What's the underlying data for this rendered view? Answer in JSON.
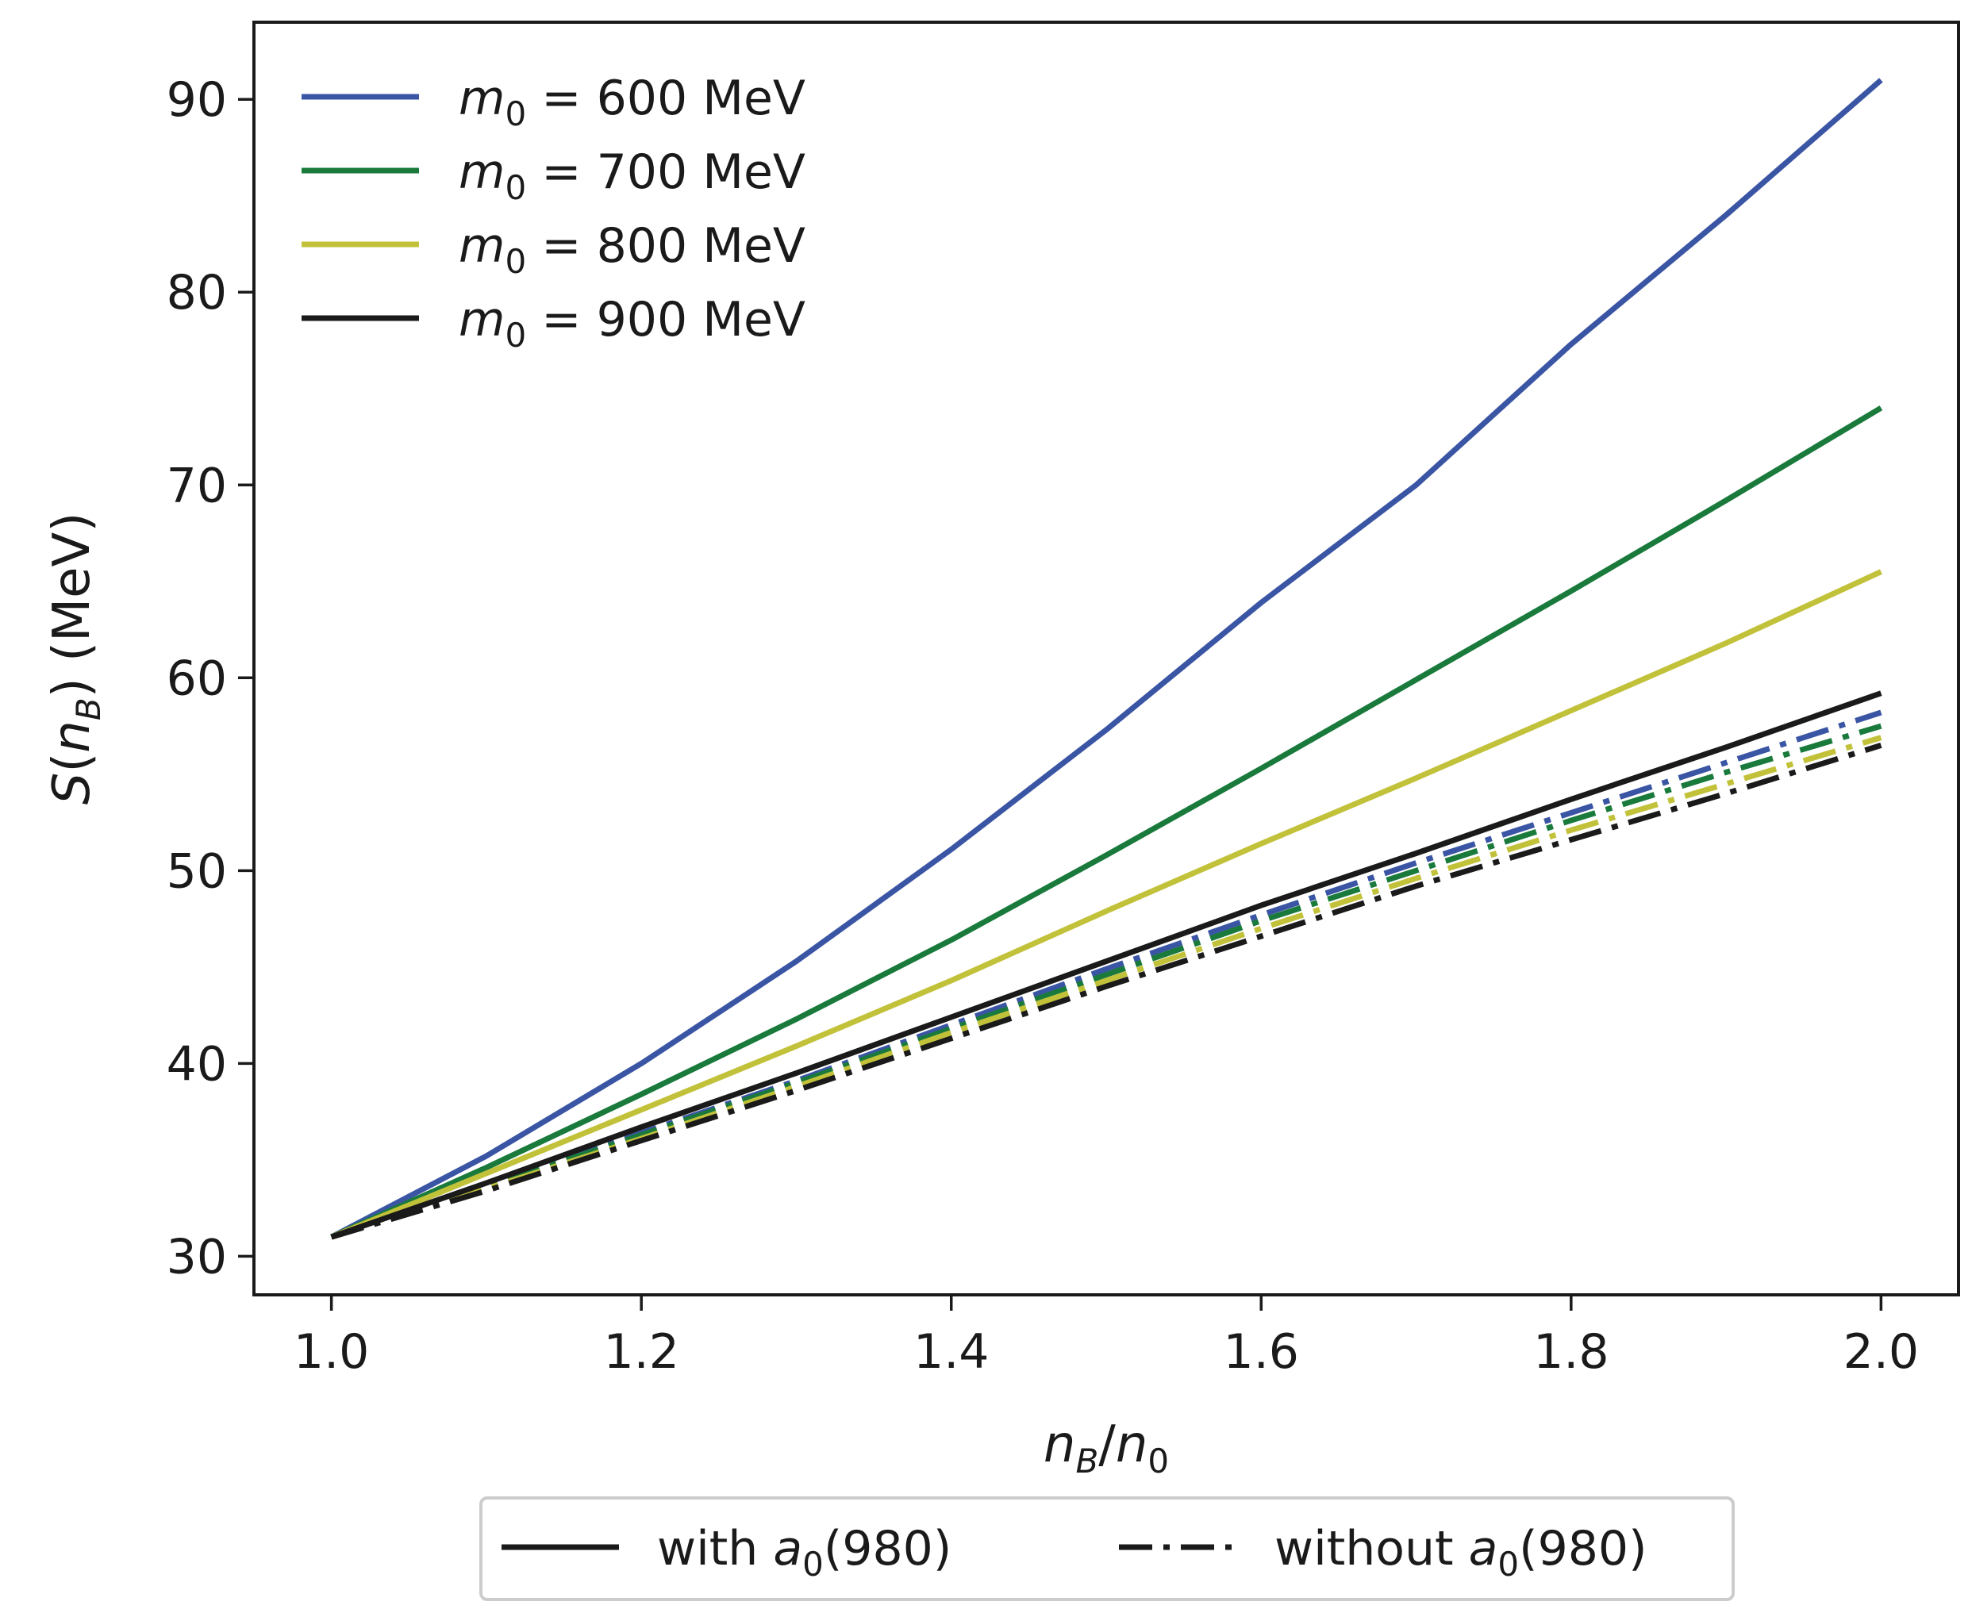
{
  "chart_data": {
    "type": "line",
    "xlabel": "n_B/n_0",
    "ylabel": "S(n_B) (MeV)",
    "xlim": [
      0.95,
      2.05
    ],
    "ylim": [
      28,
      94
    ],
    "xticks": [
      1.0,
      1.2,
      1.4,
      1.6,
      1.8,
      2.0
    ],
    "yticks": [
      30,
      40,
      50,
      60,
      70,
      80,
      90
    ],
    "xtick_labels": [
      "1.0",
      "1.2",
      "1.4",
      "1.6",
      "1.8",
      "2.0"
    ],
    "ytick_labels": [
      "30",
      "40",
      "50",
      "60",
      "70",
      "80",
      "90"
    ],
    "x": [
      1.0,
      1.1,
      1.2,
      1.3,
      1.4,
      1.5,
      1.6,
      1.7,
      1.8,
      1.9,
      2.0
    ],
    "series": [
      {
        "name": "m_0 = 600 MeV",
        "style": "with a_0(980)",
        "color": "#3a55a4",
        "values": [
          31.0,
          35.2,
          40.0,
          45.3,
          51.1,
          57.3,
          63.9,
          70.0,
          77.3,
          84.0,
          91.0
        ]
      },
      {
        "name": "m_0 = 700 MeV",
        "style": "with a_0(980)",
        "color": "#197a3c",
        "values": [
          31.0,
          34.6,
          38.4,
          42.3,
          46.4,
          50.8,
          55.3,
          59.9,
          64.5,
          69.2,
          74.0
        ]
      },
      {
        "name": "m_0 = 800 MeV",
        "style": "with a_0(980)",
        "color": "#c2c13a",
        "values": [
          31.0,
          34.3,
          37.6,
          40.9,
          44.3,
          47.9,
          51.4,
          54.8,
          58.3,
          61.8,
          65.5
        ]
      },
      {
        "name": "m_0 = 900 MeV",
        "style": "with a_0(980)",
        "color": "#1a1a1a",
        "values": [
          31.0,
          33.8,
          36.7,
          39.5,
          42.4,
          45.3,
          48.2,
          50.9,
          53.7,
          56.4,
          59.2
        ]
      },
      {
        "name": "m_0 = 600 MeV",
        "style": "without a_0(980)",
        "color": "#3a55a4",
        "values": [
          31.0,
          33.7,
          36.4,
          39.1,
          42.0,
          44.9,
          47.7,
          50.4,
          53.0,
          55.6,
          58.2
        ]
      },
      {
        "name": "m_0 = 700 MeV",
        "style": "without a_0(980)",
        "color": "#197a3c",
        "values": [
          31.0,
          33.6,
          36.3,
          39.0,
          41.8,
          44.6,
          47.4,
          50.0,
          52.6,
          55.1,
          57.5
        ]
      },
      {
        "name": "m_0 = 800 MeV",
        "style": "without a_0(980)",
        "color": "#c2c13a",
        "values": [
          31.0,
          33.5,
          36.1,
          38.8,
          41.6,
          44.3,
          47.0,
          49.6,
          52.1,
          54.5,
          56.9
        ]
      },
      {
        "name": "m_0 = 900 MeV",
        "style": "without a_0(980)",
        "color": "#1a1a1a",
        "values": [
          31.0,
          33.4,
          36.0,
          38.6,
          41.3,
          44.0,
          46.6,
          49.2,
          51.6,
          54.0,
          56.5
        ]
      }
    ],
    "legend_top_left": [
      {
        "var": "m",
        "sub": "0",
        "rest": " = 600 MeV",
        "color": "#3a55a4"
      },
      {
        "var": "m",
        "sub": "0",
        "rest": " = 700 MeV",
        "color": "#197a3c"
      },
      {
        "var": "m",
        "sub": "0",
        "rest": " = 800 MeV",
        "color": "#c2c13a"
      },
      {
        "var": "m",
        "sub": "0",
        "rest": " = 900 MeV",
        "color": "#1a1a1a"
      }
    ],
    "legend_bottom": [
      {
        "pre": "with ",
        "var": "a",
        "sub": "0",
        "rest": "(980)",
        "dash": "solid"
      },
      {
        "pre": "without ",
        "var": "a",
        "sub": "0",
        "rest": "(980)",
        "dash": "dashdot"
      }
    ]
  }
}
